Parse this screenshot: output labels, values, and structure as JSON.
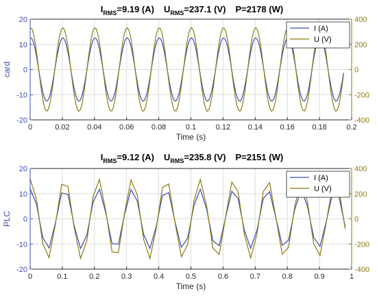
{
  "chart_data": [
    {
      "type": "line",
      "title": {
        "I_name": "I",
        "I_sub": "RMS",
        "I_val": "=9.19  (A)",
        "U_name": "U",
        "U_sub": "RMS",
        "U_val": "=237.1  (V)",
        "P_text": "P=2178  (W)"
      },
      "xlabel": "Time (s)",
      "ylabel_left": "card",
      "xlim": [
        0,
        0.2
      ],
      "ylim_left": [
        -20,
        20
      ],
      "ylim_right": [
        -400,
        400
      ],
      "x_ticks": [
        "0",
        "0.02",
        "0.04",
        "0.06",
        "0.08",
        "0.1",
        "0.12",
        "0.14",
        "0.16",
        "0.18",
        "0.2"
      ],
      "y_ticks_left": [
        "20",
        "10",
        "0",
        "-10",
        "-20"
      ],
      "y_ticks_right": [
        "400",
        "200",
        "0",
        "-200",
        "-400"
      ],
      "legend": [
        "I (A)",
        "U (V)"
      ],
      "legend_position": "top-right",
      "grid": true,
      "series": [
        {
          "name": "I (A)",
          "axis": "left",
          "color": "#3a4bb0",
          "signal": "sine",
          "amplitude": 12.6,
          "frequency_hz": 50,
          "phase_deg": 84,
          "x_end": 0.195,
          "samples": 200
        },
        {
          "name": "U (V)",
          "axis": "right",
          "color": "#8c7a0a",
          "signal": "sine",
          "amplitude": 332,
          "frequency_hz": 50,
          "phase_deg": 84,
          "x_end": 0.195,
          "samples": 200
        }
      ]
    },
    {
      "type": "line",
      "title": {
        "I_name": "I",
        "I_sub": "RMS",
        "I_val": "=9.12  (A)",
        "U_name": "U",
        "U_sub": "RMS",
        "U_val": "=235.8  (V)",
        "P_text": "P=2151  (W)"
      },
      "xlabel": "Time (s)",
      "ylabel_left": "PLC",
      "xlim": [
        0,
        1
      ],
      "ylim_left": [
        -20,
        20
      ],
      "ylim_right": [
        -400,
        400
      ],
      "x_ticks": [
        "0",
        "0.1",
        "0.2",
        "0.3",
        "0.4",
        "0.5",
        "0.6",
        "0.7",
        "0.8",
        "0.9",
        "1"
      ],
      "y_ticks_left": [
        "20",
        "10",
        "0",
        "-10",
        "-20"
      ],
      "y_ticks_right": [
        "400",
        "200",
        "0",
        "-200",
        "-400"
      ],
      "legend": [
        "I (A)",
        "U (V)"
      ],
      "legend_position": "top-right",
      "grid": true,
      "series": [
        {
          "name": "I (A)",
          "axis": "left",
          "color": "#3a4bb0",
          "signal": "sampled",
          "amplitude": 12.0,
          "frequency_hz": 10,
          "phase_deg": 84,
          "x_end": 0.98,
          "samples": 50
        },
        {
          "name": "U (V)",
          "axis": "right",
          "color": "#8c7a0a",
          "signal": "sampled",
          "amplitude": 320,
          "frequency_hz": 10,
          "phase_deg": 84,
          "x_end": 0.98,
          "samples": 50
        }
      ]
    }
  ]
}
